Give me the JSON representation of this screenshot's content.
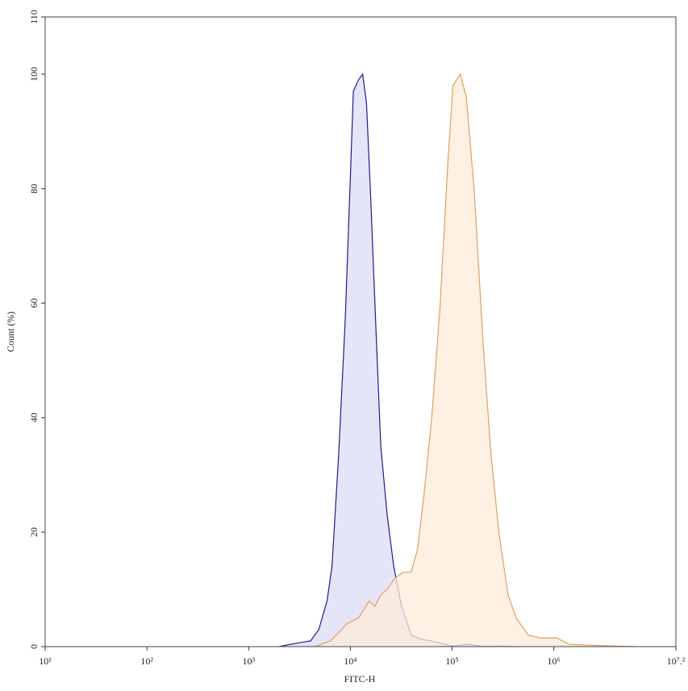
{
  "chart_data": {
    "type": "area",
    "xlabel": "FITC-H",
    "ylabel": "Count (%)",
    "xscale": "log",
    "xlim": [
      10,
      15848932
    ],
    "ylim": [
      0,
      110
    ],
    "xticks": [
      {
        "value": 10,
        "label": "10¹"
      },
      {
        "value": 100,
        "label": "10²"
      },
      {
        "value": 1000,
        "label": "10³"
      },
      {
        "value": 10000,
        "label": "10⁴"
      },
      {
        "value": 100000,
        "label": "10⁵"
      },
      {
        "value": 1000000,
        "label": "10⁶"
      },
      {
        "value": 15848932,
        "label": "10⁷.²"
      }
    ],
    "yticks": [
      0,
      20,
      40,
      60,
      80,
      100,
      110
    ],
    "series": [
      {
        "color": "#1c1c8a",
        "fill_color": "#dcdcf7",
        "x": [
          2000,
          2570,
          4070,
          4900,
          5900,
          6600,
          7700,
          8900,
          10000,
          10700,
          12000,
          13200,
          14400,
          15800,
          17700,
          19900,
          23000,
          26700,
          31900,
          39600,
          47600,
          68800,
          100000,
          144000,
          205000,
          293000,
          427000
        ],
        "values": [
          0,
          0.4,
          1,
          3,
          8,
          14,
          34,
          57,
          82,
          97,
          99,
          100,
          95,
          79,
          57,
          35,
          23,
          14,
          7,
          2,
          1.4,
          0.8,
          0.1,
          0.4,
          0,
          0.1,
          0
        ]
      },
      {
        "color": "#e0a060",
        "fill_color": "#fdebd8",
        "x": [
          4470,
          6400,
          9300,
          12000,
          15400,
          17400,
          19900,
          23000,
          27500,
          33000,
          39600,
          45700,
          52500,
          63100,
          75900,
          91200,
          102000,
          120000,
          138000,
          166000,
          200000,
          240000,
          288000,
          355000,
          427000,
          562000,
          741000,
          1070000,
          1410000,
          3800000,
          6610000
        ],
        "values": [
          0,
          1,
          4,
          5,
          8,
          7,
          9,
          10,
          12,
          13,
          13,
          17,
          26,
          40,
          59,
          85,
          98,
          100,
          96,
          79,
          54,
          34,
          20,
          9,
          5,
          2,
          1.5,
          1.5,
          0.4,
          0.1,
          0
        ]
      }
    ]
  }
}
